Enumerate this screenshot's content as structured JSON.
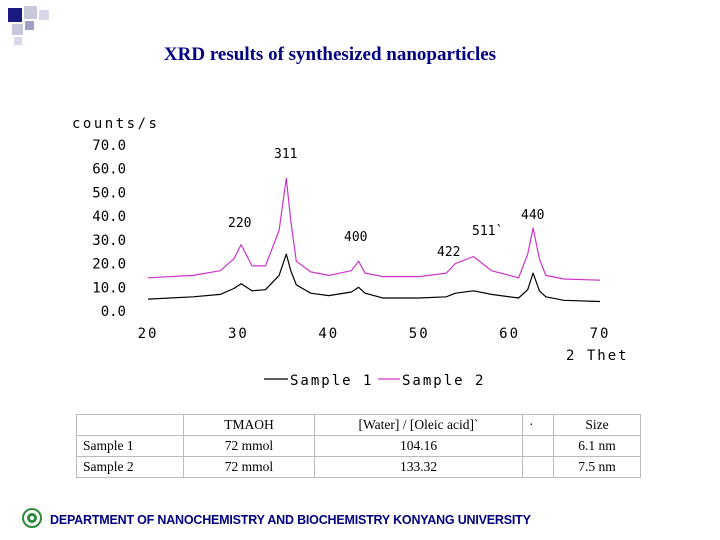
{
  "title": "XRD results of synthesized  nanoparticles",
  "chart_data": {
    "type": "line",
    "ylabel": "counts/s",
    "xlabel": "2 Thet",
    "xlim": [
      20,
      70
    ],
    "ylim": [
      0,
      70
    ],
    "xticks": [
      "20",
      "30",
      "40",
      "50",
      "60",
      "70"
    ],
    "yticks": [
      "0.0",
      "10.0",
      "20.0",
      "30.0",
      "40.0",
      "50.0",
      "60.0",
      "70.0"
    ],
    "legend_position": "bottom",
    "series": [
      {
        "name": "Sample 1",
        "color": "#000000",
        "x": [
          20,
          25,
          28,
          29.5,
          30.3,
          31.5,
          33,
          34.5,
          35.3,
          35.8,
          36.4,
          38,
          40,
          42.5,
          43.3,
          44,
          46,
          50,
          53,
          54,
          56,
          58,
          61,
          62,
          62.6,
          63.3,
          64,
          66,
          70
        ],
        "y": [
          5,
          6,
          7,
          9.5,
          11.5,
          8.5,
          9,
          15,
          24,
          17,
          11,
          7.5,
          6.5,
          8,
          10,
          7.5,
          5.5,
          5.5,
          6,
          7.5,
          8.5,
          7,
          5.5,
          9,
          16,
          8.5,
          6,
          4.5,
          4
        ]
      },
      {
        "name": "Sample 2",
        "color": "#cc33cc",
        "x": [
          20,
          25,
          28,
          29.5,
          30.3,
          31.5,
          33,
          34.5,
          35.3,
          35.8,
          36.4,
          38,
          40,
          42.5,
          43.3,
          44,
          46,
          50,
          53,
          54,
          56,
          58,
          61,
          62,
          62.6,
          63.3,
          64,
          66,
          70
        ],
        "y": [
          14,
          15,
          17,
          22,
          28,
          19,
          19,
          34,
          56,
          38,
          21,
          16.5,
          15,
          17,
          21,
          16,
          14.5,
          14.5,
          16,
          20,
          23,
          17,
          14,
          24,
          35,
          22,
          15,
          13.5,
          13
        ]
      }
    ],
    "annotations": [
      "311",
      "220",
      "400",
      "511`",
      "422",
      "440"
    ]
  },
  "table": {
    "headers": [
      "",
      "TMAOH",
      "[Water] / [Oleic acid]`",
      "·",
      "Size"
    ],
    "rows": [
      [
        "Sample 1",
        "72 mmol",
        "104.16",
        "",
        "6.1 nm"
      ],
      [
        "Sample 2",
        "72 mmol",
        "133.32",
        "",
        "7.5 nm"
      ]
    ]
  },
  "footer": {
    "text": "DEPARTMENT OF NANOCHEMISTRY AND BIOCHEMISTRY KONYANG UNIVERSITY",
    "logo_icon": "university-seal-icon",
    "accent": "#000080",
    "logo_color": "#2e8b3a"
  }
}
